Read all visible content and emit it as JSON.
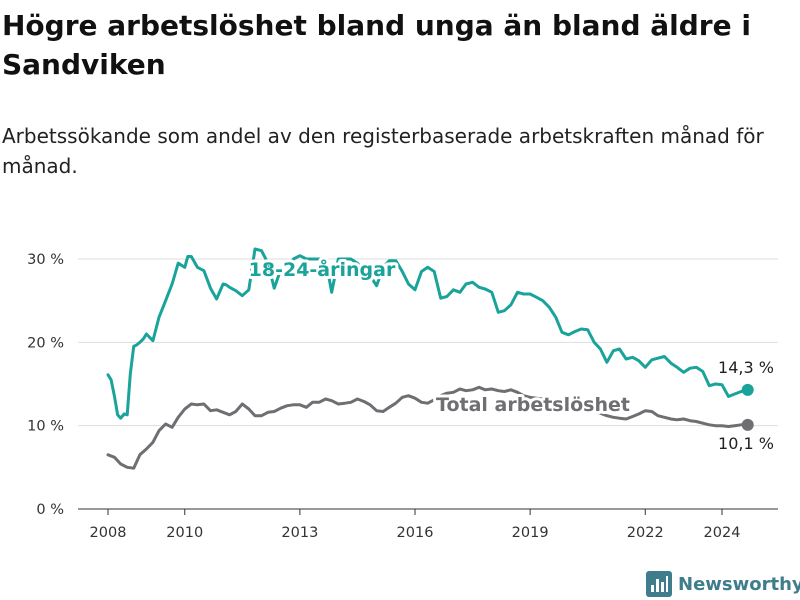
{
  "title": "Högre arbetslöshet bland unga än bland äldre i Sandviken",
  "subtitle": "Arbetssökande som andel av den registerbaserade arbetskraften månad för månad.",
  "brand": {
    "name": "Newsworthy",
    "icon": "bar-chart-logo-icon"
  },
  "colors": {
    "youth": "#1aa39a",
    "total": "#6e6e73",
    "grid": "#dddddd",
    "axis": "#333333"
  },
  "chart_data": {
    "type": "line",
    "title": "Högre arbetslöshet bland unga än bland äldre i Sandviken",
    "subtitle": "Arbetssökande som andel av den registerbaserade arbetskraften månad för månad.",
    "x_range": [
      2007.5,
      2025.6
    ],
    "ylim": [
      0,
      32
    ],
    "x_ticks": [
      2008,
      2010,
      2013,
      2016,
      2019,
      2022,
      2024
    ],
    "x_tick_labels": [
      "2008",
      "2010",
      "2013",
      "2016",
      "2019",
      "2022",
      "2024"
    ],
    "y_ticks": [
      0,
      10,
      20,
      30
    ],
    "y_tick_labels": [
      "0 %",
      "10 %",
      "20 %",
      "30 %"
    ],
    "grid": true,
    "series": [
      {
        "name": "18-24-åringar",
        "end_label": "14,3 %",
        "end_value": 14.3,
        "x": [
          2008.0,
          2008.08,
          2008.17,
          2008.25,
          2008.33,
          2008.42,
          2008.5,
          2008.58,
          2008.67,
          2008.75,
          2008.83,
          2008.92,
          2009.0,
          2009.17,
          2009.33,
          2009.5,
          2009.67,
          2009.83,
          2010.0,
          2010.08,
          2010.17,
          2010.33,
          2010.5,
          2010.67,
          2010.83,
          2011.0,
          2011.08,
          2011.17,
          2011.33,
          2011.5,
          2011.67,
          2011.83,
          2012.0,
          2012.17,
          2012.33,
          2012.5,
          2012.67,
          2012.83,
          2013.0,
          2013.17,
          2013.33,
          2013.5,
          2013.67,
          2013.83,
          2014.0,
          2014.17,
          2014.33,
          2014.5,
          2014.67,
          2014.83,
          2015.0,
          2015.17,
          2015.33,
          2015.5,
          2015.67,
          2015.83,
          2016.0,
          2016.17,
          2016.33,
          2016.5,
          2016.67,
          2016.83,
          2017.0,
          2017.17,
          2017.33,
          2017.5,
          2017.67,
          2017.83,
          2018.0,
          2018.17,
          2018.33,
          2018.5,
          2018.67,
          2018.83,
          2019.0,
          2019.17,
          2019.33,
          2019.5,
          2019.67,
          2019.83,
          2020.0,
          2020.17,
          2020.33,
          2020.5,
          2020.67,
          2020.83,
          2021.0,
          2021.17,
          2021.33,
          2021.5,
          2021.67,
          2021.83,
          2022.0,
          2022.17,
          2022.33,
          2022.5,
          2022.67,
          2022.83,
          2023.0,
          2023.17,
          2023.33,
          2023.5,
          2023.67,
          2023.83,
          2024.0,
          2024.17,
          2024.33,
          2024.5,
          2024.67
        ],
        "y": [
          16.1,
          15.5,
          13.5,
          11.3,
          10.9,
          11.4,
          11.3,
          16.2,
          19.5,
          19.7,
          20.0,
          20.4,
          21.0,
          20.2,
          23.0,
          25.0,
          27.0,
          29.5,
          29.0,
          30.3,
          30.3,
          29.0,
          28.6,
          26.5,
          25.2,
          27.0,
          26.9,
          26.6,
          26.2,
          25.6,
          26.3,
          31.2,
          31.0,
          29.5,
          26.5,
          28.7,
          28.8,
          30.0,
          30.4,
          30.0,
          30.0,
          30.0,
          30.0,
          26.0,
          30.0,
          30.0,
          30.0,
          29.5,
          28.5,
          28.0,
          26.8,
          29.0,
          29.8,
          29.8,
          28.5,
          27.0,
          26.3,
          28.5,
          29.0,
          28.5,
          25.3,
          25.5,
          26.3,
          26.0,
          27.0,
          27.2,
          26.6,
          26.4,
          26.0,
          23.6,
          23.8,
          24.5,
          26.0,
          25.8,
          25.8,
          25.4,
          25.0,
          24.2,
          23.0,
          21.2,
          20.9,
          21.3,
          21.6,
          21.5,
          20.0,
          19.2,
          17.6,
          19.0,
          19.2,
          18.0,
          18.2,
          17.8,
          17.0,
          17.9,
          18.1,
          18.3,
          17.5,
          17.0,
          16.4,
          16.9,
          17.0,
          16.5,
          14.8,
          15.0,
          14.9,
          13.5,
          13.8,
          14.1,
          14.3
        ],
        "labels": [
          "18-24-åringar"
        ]
      },
      {
        "name": "Total arbetslöshet",
        "end_label": "10,1 %",
        "end_value": 10.1,
        "x": [
          2008.0,
          2008.17,
          2008.33,
          2008.5,
          2008.67,
          2008.83,
          2009.0,
          2009.17,
          2009.33,
          2009.5,
          2009.67,
          2009.83,
          2010.0,
          2010.17,
          2010.33,
          2010.5,
          2010.67,
          2010.83,
          2011.0,
          2011.17,
          2011.33,
          2011.5,
          2011.67,
          2011.83,
          2012.0,
          2012.17,
          2012.33,
          2012.5,
          2012.67,
          2012.83,
          2013.0,
          2013.17,
          2013.33,
          2013.5,
          2013.67,
          2013.83,
          2014.0,
          2014.17,
          2014.33,
          2014.5,
          2014.67,
          2014.83,
          2015.0,
          2015.17,
          2015.33,
          2015.5,
          2015.67,
          2015.83,
          2016.0,
          2016.17,
          2016.33,
          2016.5,
          2016.67,
          2016.83,
          2017.0,
          2017.17,
          2017.33,
          2017.5,
          2017.67,
          2017.83,
          2018.0,
          2018.17,
          2018.33,
          2018.5,
          2018.67,
          2018.83,
          2019.0,
          2019.17,
          2019.33,
          2019.5,
          2019.67,
          2019.83,
          2020.0,
          2020.17,
          2020.33,
          2020.5,
          2020.67,
          2020.83,
          2021.0,
          2021.17,
          2021.33,
          2021.5,
          2021.67,
          2021.83,
          2022.0,
          2022.17,
          2022.33,
          2022.5,
          2022.67,
          2022.83,
          2023.0,
          2023.17,
          2023.33,
          2023.5,
          2023.67,
          2023.83,
          2024.0,
          2024.17,
          2024.33,
          2024.5,
          2024.67
        ],
        "y": [
          6.5,
          6.2,
          5.4,
          5.0,
          4.9,
          6.5,
          7.2,
          8.0,
          9.4,
          10.2,
          9.8,
          11.0,
          12.0,
          12.6,
          12.5,
          12.6,
          11.8,
          11.9,
          11.6,
          11.3,
          11.7,
          12.6,
          12.0,
          11.2,
          11.2,
          11.6,
          11.7,
          12.1,
          12.4,
          12.5,
          12.5,
          12.2,
          12.8,
          12.8,
          13.2,
          13.0,
          12.6,
          12.7,
          12.8,
          13.2,
          12.9,
          12.5,
          11.8,
          11.7,
          12.2,
          12.7,
          13.4,
          13.6,
          13.3,
          12.8,
          12.7,
          13.1,
          13.6,
          13.9,
          14.0,
          14.4,
          14.2,
          14.3,
          14.6,
          14.3,
          14.4,
          14.2,
          14.1,
          14.3,
          14.0,
          13.6,
          13.4,
          13.3,
          13.2,
          13.0,
          12.9,
          12.6,
          12.3,
          12.2,
          12.0,
          12.1,
          11.8,
          11.5,
          11.2,
          11.0,
          10.9,
          10.8,
          11.1,
          11.4,
          11.8,
          11.7,
          11.2,
          11.0,
          10.8,
          10.7,
          10.8,
          10.6,
          10.5,
          10.3,
          10.1,
          10.0,
          10.0,
          9.9,
          10.0,
          10.1,
          10.1
        ],
        "labels": [
          "Total arbetslöshet"
        ]
      }
    ]
  }
}
